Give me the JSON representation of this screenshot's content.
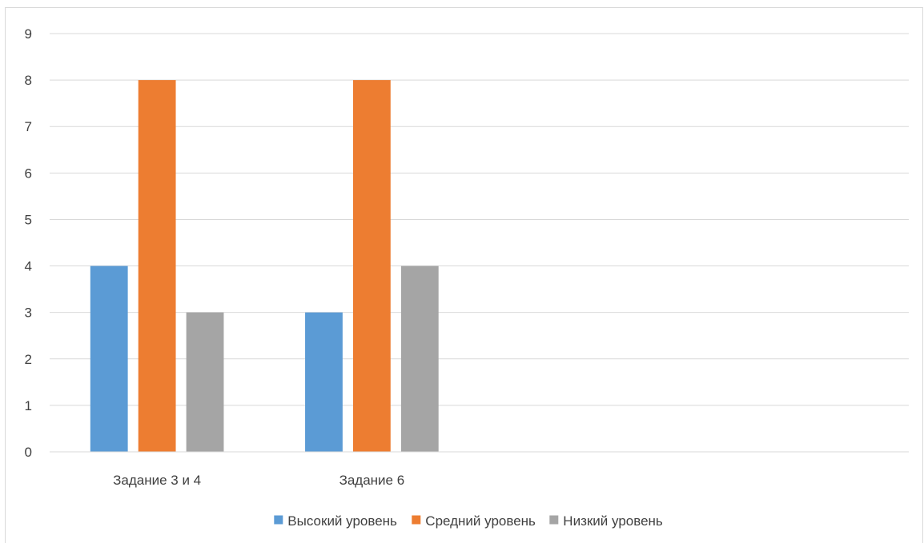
{
  "chart_data": {
    "type": "bar",
    "title": "",
    "xlabel": "",
    "ylabel": "",
    "categories": [
      "Задание 3 и 4",
      "Задание 6",
      "",
      ""
    ],
    "series": [
      {
        "name": "Высокий уровень",
        "values": [
          4,
          3,
          null,
          null
        ],
        "color": "#5b9bd5"
      },
      {
        "name": "Средний уровень",
        "values": [
          8,
          8,
          null,
          null
        ],
        "color": "#ed7d31"
      },
      {
        "name": "Низкий уровень",
        "values": [
          3,
          4,
          null,
          null
        ],
        "color": "#a5a5a5"
      }
    ],
    "ylim": [
      0,
      9
    ],
    "yticks": [
      0,
      1,
      2,
      3,
      4,
      5,
      6,
      7,
      8,
      9
    ],
    "grid": true,
    "legend_position": "bottom"
  }
}
